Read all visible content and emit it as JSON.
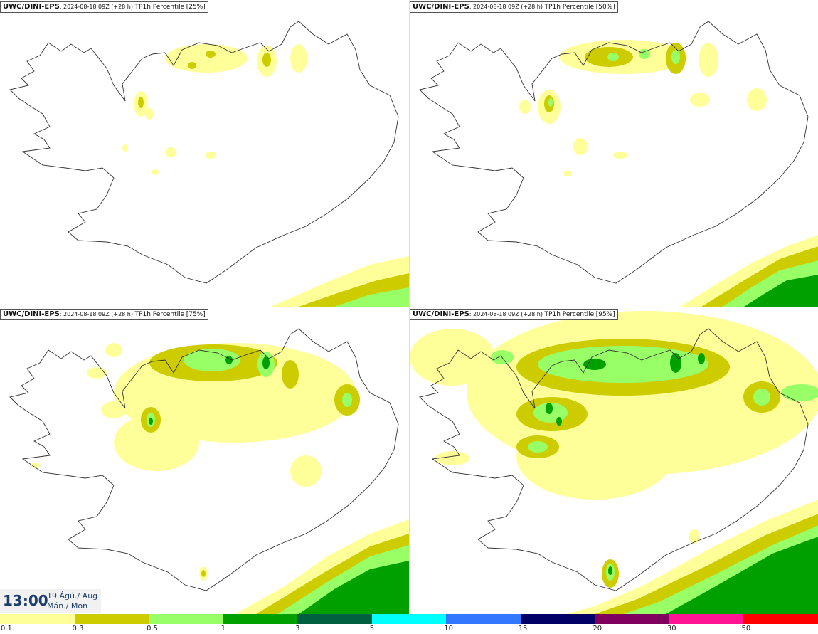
{
  "panels": [
    {
      "model": "UWC/DINI-EPS",
      "run": "2024-08-18 09Z (+28 h)",
      "var": "TP1h Percentile",
      "pct": "[25%]"
    },
    {
      "model": "UWC/DINI-EPS",
      "run": "2024-08-18 09Z (+28 h)",
      "var": "TP1h Percentile",
      "pct": "[50%]"
    },
    {
      "model": "UWC/DINI-EPS",
      "run": "2024-08-18 09Z (+28 h)",
      "var": "TP1h Percentile",
      "pct": "[75%]"
    },
    {
      "model": "UWC/DINI-EPS",
      "run": "2024-08-18 09Z (+28 h)",
      "var": "TP1h Percentile",
      "pct": "[95%]"
    }
  ],
  "valid": {
    "time": "13:00",
    "date_line1": "19.Ágú./ Aug",
    "date_line2": "Mán./ Mon"
  },
  "legend": {
    "colors": [
      "#ffff99",
      "#cccc00",
      "#99ff66",
      "#00a000",
      "#006040",
      "#00ffff",
      "#3377ff",
      "#000066",
      "#800060",
      "#ff1493",
      "#ff0000"
    ],
    "ticks": [
      "0.1",
      "0.3",
      "0.5",
      "1",
      "3",
      "5",
      "10",
      "15",
      "20",
      "30",
      "50"
    ]
  }
}
